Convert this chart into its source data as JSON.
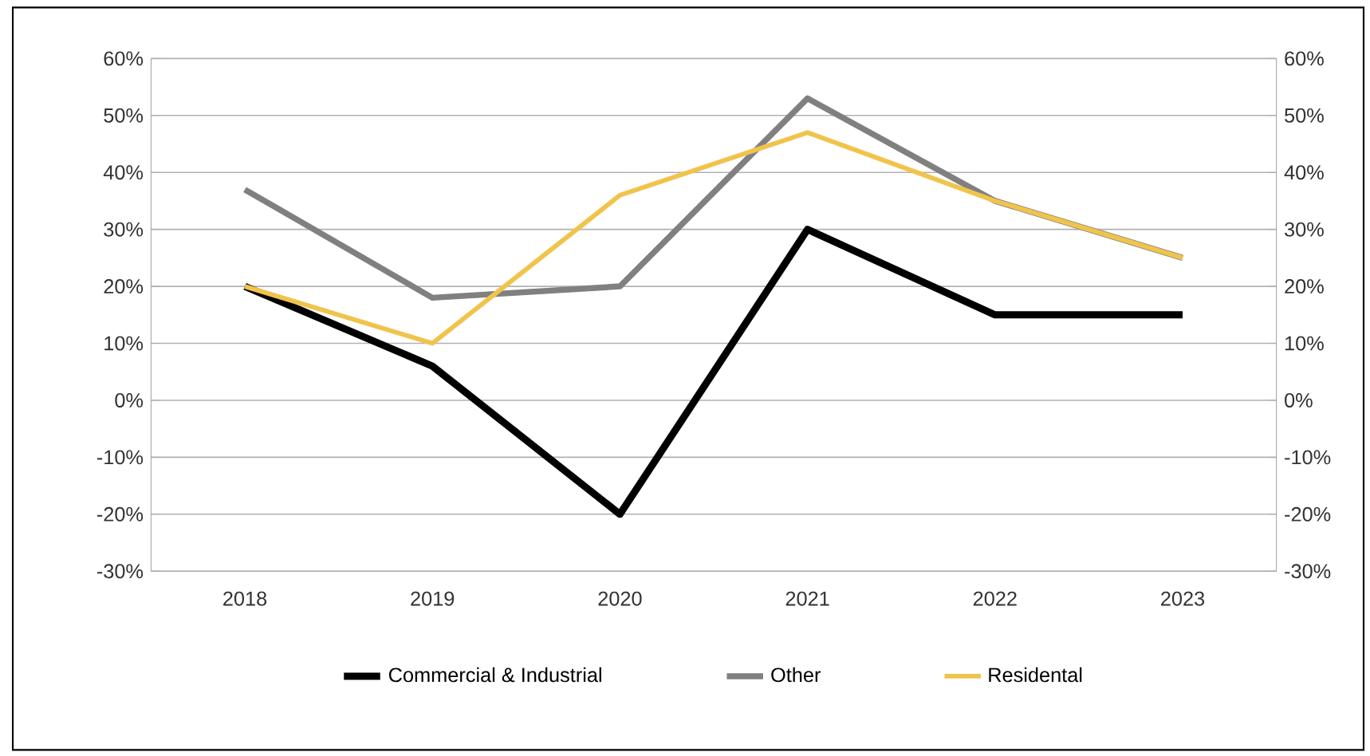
{
  "chart_data": {
    "type": "line",
    "categories": [
      "2018",
      "2019",
      "2020",
      "2021",
      "2022",
      "2023"
    ],
    "series": [
      {
        "name": "Commercial & Industrial",
        "color": "#000000",
        "values": [
          20,
          6,
          -20,
          30,
          15,
          15
        ]
      },
      {
        "name": "Other",
        "color": "#808080",
        "values": [
          37,
          18,
          20,
          53,
          35,
          25
        ]
      },
      {
        "name": "Residental",
        "color": "#f0c44c",
        "values": [
          20,
          10,
          36,
          47,
          35,
          25
        ]
      }
    ],
    "ylim": [
      -30,
      60
    ],
    "yticks": [
      {
        "value": -30,
        "label": "-30%"
      },
      {
        "value": -20,
        "label": "-20%"
      },
      {
        "value": -10,
        "label": "-10%"
      },
      {
        "value": 0,
        "label": "0%"
      },
      {
        "value": 10,
        "label": "10%"
      },
      {
        "value": 20,
        "label": "20%"
      },
      {
        "value": 30,
        "label": "30%"
      },
      {
        "value": 40,
        "label": "40%"
      },
      {
        "value": 50,
        "label": "50%"
      },
      {
        "value": 60,
        "label": "60%"
      }
    ],
    "y2lim": [
      -30,
      60
    ],
    "y2ticks": [
      {
        "value": -30,
        "label": "-30%"
      },
      {
        "value": -20,
        "label": "-20%"
      },
      {
        "value": -10,
        "label": "-10%"
      },
      {
        "value": 0,
        "label": "0%"
      },
      {
        "value": 10,
        "label": "10%"
      },
      {
        "value": 20,
        "label": "20%"
      },
      {
        "value": 30,
        "label": "30%"
      },
      {
        "value": 40,
        "label": "40%"
      },
      {
        "value": 50,
        "label": "50%"
      },
      {
        "value": 60,
        "label": "60%"
      }
    ],
    "grid": "y",
    "legend": "bottom",
    "line_style": "solid"
  }
}
